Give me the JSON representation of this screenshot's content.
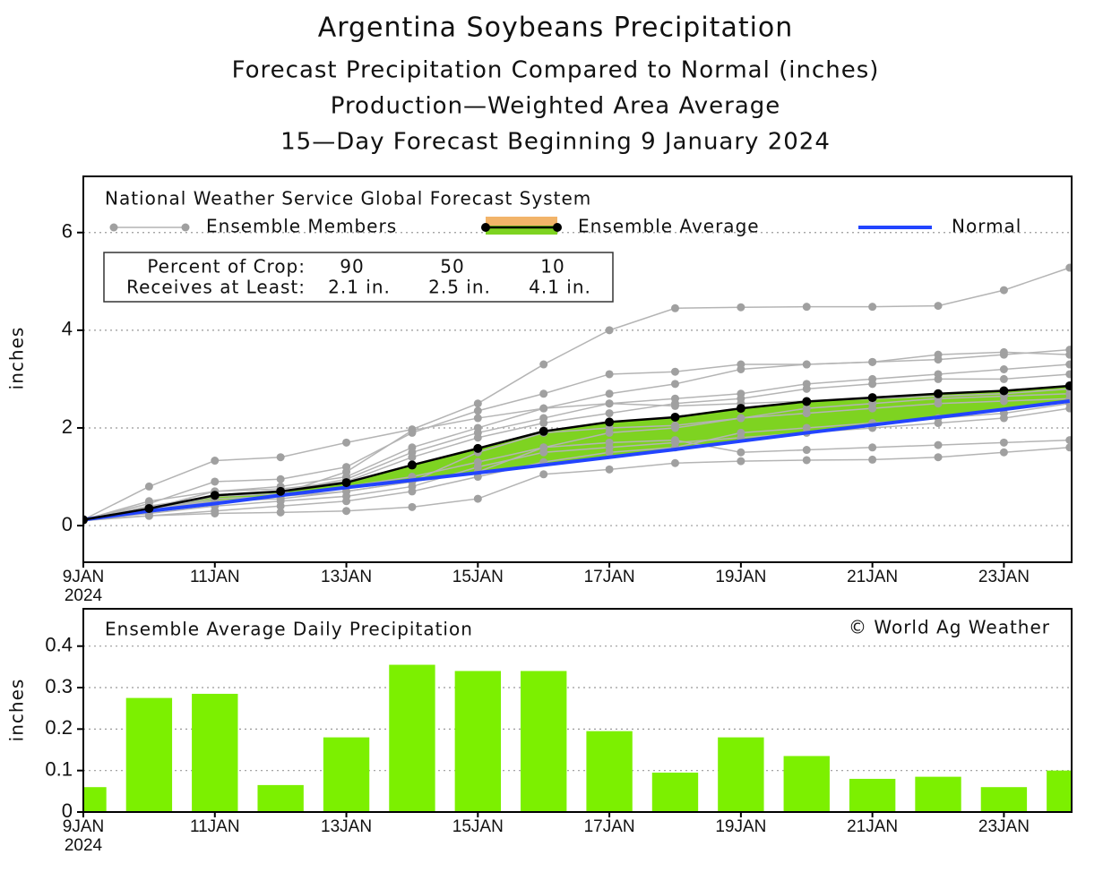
{
  "chart_data": [
    {
      "type": "line",
      "title": "Argentina Soybeans Precipitation",
      "subtitle": [
        "Forecast Precipitation Compared to Normal (inches)",
        "Production—Weighted Area Average",
        "15—Day Forecast Beginning 9 January 2024"
      ],
      "legend_title": "National Weather Service Global Forecast System",
      "ylabel": "inches",
      "x": [
        9,
        10,
        11,
        12,
        13,
        14,
        15,
        16,
        17,
        18,
        19,
        20,
        21,
        22,
        23,
        24
      ],
      "xlim": [
        9,
        24.03
      ],
      "xticks": [
        {
          "value": 9,
          "label": "9JAN"
        },
        {
          "value": 11,
          "label": "11JAN"
        },
        {
          "value": 13,
          "label": "13JAN"
        },
        {
          "value": 15,
          "label": "15JAN"
        },
        {
          "value": 17,
          "label": "17JAN"
        },
        {
          "value": 19,
          "label": "19JAN"
        },
        {
          "value": 21,
          "label": "21JAN"
        },
        {
          "value": 23,
          "label": "23JAN"
        }
      ],
      "x_year": "2024",
      "ylim": [
        -0.75,
        7.15
      ],
      "yticks": [
        0,
        2,
        4,
        6
      ],
      "grid": true,
      "series": [
        {
          "name": "Ensemble Members",
          "color": "#b4b4b4",
          "marker_color": "#a0a0a0",
          "members": [
            [
              0.12,
              0.8,
              1.33,
              1.4,
              1.7,
              1.97,
              2.5,
              3.3,
              4.0,
              4.45,
              4.47,
              4.48,
              4.48,
              4.5,
              4.82,
              5.28
            ],
            [
              0.1,
              0.2,
              0.25,
              0.27,
              0.3,
              0.38,
              0.55,
              1.05,
              1.15,
              1.28,
              1.32,
              1.34,
              1.35,
              1.4,
              1.5,
              1.6
            ],
            [
              0.12,
              0.45,
              0.9,
              0.95,
              1.2,
              1.9,
              2.35,
              2.7,
              3.1,
              3.15,
              3.3,
              3.3,
              3.35,
              3.4,
              3.5,
              3.6
            ],
            [
              0.12,
              0.3,
              0.5,
              0.55,
              0.7,
              0.9,
              1.1,
              1.6,
              1.9,
              2.0,
              2.2,
              2.4,
              2.5,
              2.6,
              2.65,
              2.7
            ],
            [
              0.12,
              0.5,
              0.7,
              0.8,
              1.0,
              1.6,
              2.0,
              2.4,
              2.7,
              2.9,
              3.2,
              3.3,
              3.35,
              3.5,
              3.55,
              3.5
            ],
            [
              0.12,
              0.25,
              0.4,
              0.5,
              0.6,
              0.8,
              1.2,
              1.5,
              1.6,
              1.7,
              1.8,
              1.9,
              2.0,
              2.1,
              2.2,
              2.4
            ],
            [
              0.12,
              0.35,
              0.7,
              0.75,
              0.9,
              1.4,
              1.8,
              2.1,
              2.3,
              2.5,
              2.6,
              2.8,
              2.9,
              3.0,
              3.0,
              3.1
            ],
            [
              0.12,
              0.3,
              0.55,
              0.6,
              0.8,
              1.0,
              1.3,
              1.6,
              1.7,
              1.75,
              1.5,
              1.55,
              1.6,
              1.65,
              1.7,
              1.75
            ],
            [
              0.12,
              0.4,
              0.6,
              0.7,
              0.95,
              1.5,
              1.9,
              2.2,
              2.5,
              2.6,
              2.7,
              2.9,
              3.0,
              3.1,
              3.2,
              3.3
            ],
            [
              0.12,
              0.2,
              0.3,
              0.4,
              0.5,
              0.7,
              1.0,
              1.3,
              1.5,
              1.6,
              1.9,
              2.0,
              2.1,
              2.2,
              2.3,
              2.5
            ],
            [
              0.12,
              0.3,
              0.6,
              0.65,
              1.1,
              1.95,
              2.2,
              2.4,
              2.5,
              2.45,
              2.5,
              2.55,
              2.6,
              2.65,
              2.7,
              2.8
            ],
            [
              0.12,
              0.35,
              0.5,
              0.6,
              0.7,
              0.9,
              1.5,
              1.9,
              2.0,
              2.05,
              2.2,
              2.3,
              2.4,
              2.5,
              2.55,
              2.6
            ]
          ]
        },
        {
          "name": "Ensemble Average",
          "color": "#000000",
          "fill": "#7ed321",
          "band": "#f2b46a",
          "values": [
            0.12,
            0.35,
            0.62,
            0.7,
            0.88,
            1.24,
            1.58,
            1.93,
            2.12,
            2.22,
            2.4,
            2.54,
            2.62,
            2.7,
            2.76,
            2.86
          ]
        },
        {
          "name": "Normal",
          "color": "#2244ff",
          "values": [
            0.12,
            0.3,
            0.45,
            0.62,
            0.78,
            0.93,
            1.08,
            1.24,
            1.4,
            1.56,
            1.73,
            1.9,
            2.06,
            2.22,
            2.38,
            2.55
          ]
        }
      ],
      "crop_table": {
        "row_labels": [
          "Percent of Crop:",
          "Receives at Least:"
        ],
        "columns": [
          [
            "90",
            "2.1 in."
          ],
          [
            "50",
            "2.5 in."
          ],
          [
            "10",
            "4.1 in."
          ]
        ]
      }
    },
    {
      "type": "bar",
      "title": "Ensemble Average Daily Precipitation",
      "annotation": "© World Ag Weather",
      "ylabel": "inches",
      "x": [
        9,
        10,
        11,
        12,
        13,
        14,
        15,
        16,
        17,
        18,
        19,
        20,
        21,
        22,
        23,
        24
      ],
      "values": [
        0.06,
        0.275,
        0.285,
        0.065,
        0.18,
        0.355,
        0.34,
        0.34,
        0.195,
        0.095,
        0.18,
        0.135,
        0.08,
        0.085,
        0.06,
        0.1
      ],
      "color": "#7cf000",
      "xlim": [
        9,
        24.03
      ],
      "xticks": [
        {
          "value": 9,
          "label": "9JAN"
        },
        {
          "value": 11,
          "label": "11JAN"
        },
        {
          "value": 13,
          "label": "13JAN"
        },
        {
          "value": 15,
          "label": "15JAN"
        },
        {
          "value": 17,
          "label": "17JAN"
        },
        {
          "value": 19,
          "label": "19JAN"
        },
        {
          "value": 21,
          "label": "21JAN"
        },
        {
          "value": 23,
          "label": "23JAN"
        }
      ],
      "x_year": "2024",
      "ylim": [
        0,
        0.49
      ],
      "yticks": [
        0,
        0.1,
        0.2,
        0.3,
        0.4
      ],
      "grid": true
    }
  ]
}
